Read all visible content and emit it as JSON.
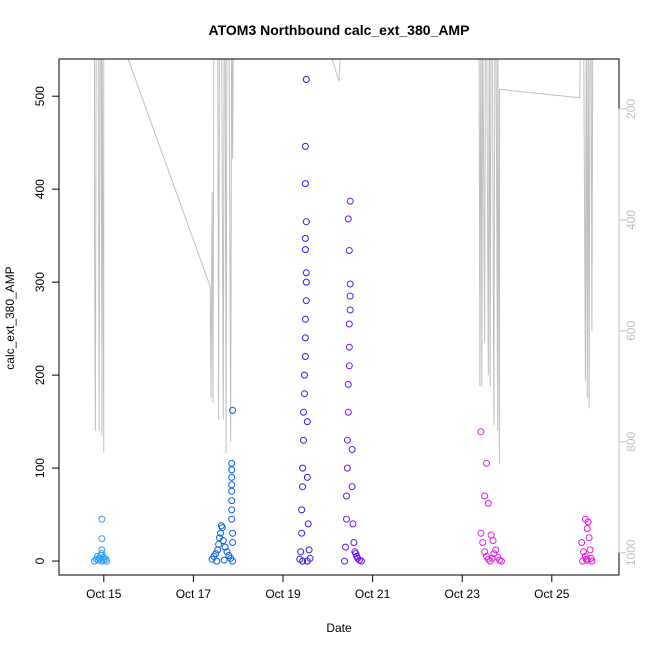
{
  "chart_data": {
    "type": "scatter",
    "title": "ATOM3 Northbound calc_ext_380_AMP",
    "xlabel": "Date",
    "ylabel": "calc_ext_380_AMP",
    "xlim": [
      "2016-10-14T00:00",
      "2016-10-26T12:00"
    ],
    "ylim": [
      -15,
      540
    ],
    "x_ticks": [
      {
        "date": "2016-10-15",
        "label": "Oct 15"
      },
      {
        "date": "2016-10-17",
        "label": "Oct 17"
      },
      {
        "date": "2016-10-19",
        "label": "Oct 19"
      },
      {
        "date": "2016-10-21",
        "label": "Oct 21"
      },
      {
        "date": "2016-10-23",
        "label": "Oct 23"
      },
      {
        "date": "2016-10-25",
        "label": "Oct 25"
      }
    ],
    "y_ticks": [
      0,
      100,
      200,
      300,
      400,
      500
    ],
    "right_axis": {
      "reversed": true,
      "range": [
        110,
        1040
      ],
      "ticks": [
        200,
        400,
        600,
        800,
        1000
      ],
      "color": "#bfbfbf"
    },
    "grid": false,
    "legend": "none",
    "series": [
      {
        "color": "#2a9df4",
        "points": [
          [
            "2016-10-14T19:00",
            0
          ],
          [
            "2016-10-14T20:00",
            2
          ],
          [
            "2016-10-14T21:00",
            1
          ],
          [
            "2016-10-14T22:00",
            3
          ],
          [
            "2016-10-14T23:00",
            0
          ],
          [
            "2016-10-15T00:00",
            4
          ],
          [
            "2016-10-14T20:30",
            5
          ],
          [
            "2016-10-14T22:30",
            6
          ],
          [
            "2016-10-14T23:00",
            8
          ],
          [
            "2016-10-14T23:00",
            12
          ],
          [
            "2016-10-14T23:00",
            24
          ],
          [
            "2016-10-14T23:00",
            45
          ],
          [
            "2016-10-14T21:30",
            3
          ],
          [
            "2016-10-15T00:00",
            1
          ],
          [
            "2016-10-15T01:00",
            2
          ],
          [
            "2016-10-15T01:30",
            0
          ]
        ]
      },
      {
        "color": "#0a5fe0",
        "points": [
          [
            "2016-10-17T10:00",
            2
          ],
          [
            "2016-10-17T11:00",
            5
          ],
          [
            "2016-10-17T12:00",
            8
          ],
          [
            "2016-10-17T13:00",
            12
          ],
          [
            "2016-10-17T13:30",
            18
          ],
          [
            "2016-10-17T14:00",
            25
          ],
          [
            "2016-10-17T14:30",
            30
          ],
          [
            "2016-10-17T15:00",
            38
          ],
          [
            "2016-10-17T15:30",
            36
          ],
          [
            "2016-10-17T16:00",
            22
          ],
          [
            "2016-10-17T17:00",
            15
          ],
          [
            "2016-10-17T18:00",
            10
          ],
          [
            "2016-10-17T19:00",
            6
          ],
          [
            "2016-10-17T20:00",
            3
          ],
          [
            "2016-10-17T20:30",
            45
          ],
          [
            "2016-10-17T20:30",
            55
          ],
          [
            "2016-10-17T20:30",
            65
          ],
          [
            "2016-10-17T20:30",
            75
          ],
          [
            "2016-10-17T20:30",
            82
          ],
          [
            "2016-10-17T20:30",
            90
          ],
          [
            "2016-10-17T20:30",
            98
          ],
          [
            "2016-10-17T20:30",
            105
          ],
          [
            "2016-10-17T21:00",
            20
          ],
          [
            "2016-10-17T21:00",
            30
          ],
          [
            "2016-10-17T21:00",
            162
          ],
          [
            "2016-10-17T21:00",
            0
          ],
          [
            "2016-10-17T12:30",
            0
          ],
          [
            "2016-10-17T16:30",
            1
          ]
        ]
      },
      {
        "color": "#2d1ee8",
        "points": [
          [
            "2016-10-19T09:00",
            2
          ],
          [
            "2016-10-19T09:30",
            10
          ],
          [
            "2016-10-19T10:00",
            30
          ],
          [
            "2016-10-19T10:00",
            55
          ],
          [
            "2016-10-19T10:30",
            80
          ],
          [
            "2016-10-19T10:30",
            100
          ],
          [
            "2016-10-19T11:00",
            130
          ],
          [
            "2016-10-19T11:00",
            160
          ],
          [
            "2016-10-19T11:30",
            180
          ],
          [
            "2016-10-19T11:30",
            200
          ],
          [
            "2016-10-19T12:00",
            220
          ],
          [
            "2016-10-19T12:00",
            240
          ],
          [
            "2016-10-19T12:00",
            260
          ],
          [
            "2016-10-19T12:30",
            280
          ],
          [
            "2016-10-19T12:30",
            300
          ],
          [
            "2016-10-19T12:30",
            310
          ],
          [
            "2016-10-19T12:00",
            335
          ],
          [
            "2016-10-19T12:00",
            347
          ],
          [
            "2016-10-19T12:30",
            365
          ],
          [
            "2016-10-19T12:00",
            406
          ],
          [
            "2016-10-19T12:00",
            446
          ],
          [
            "2016-10-19T12:30",
            518
          ],
          [
            "2016-10-19T13:00",
            150
          ],
          [
            "2016-10-19T13:00",
            90
          ],
          [
            "2016-10-19T13:30",
            40
          ],
          [
            "2016-10-19T14:00",
            12
          ],
          [
            "2016-10-19T14:30",
            3
          ],
          [
            "2016-10-19T10:30",
            0
          ],
          [
            "2016-10-19T13:00",
            0
          ]
        ]
      },
      {
        "color": "#6a14ee",
        "points": [
          [
            "2016-10-20T09:00",
            0
          ],
          [
            "2016-10-20T09:30",
            15
          ],
          [
            "2016-10-20T10:00",
            45
          ],
          [
            "2016-10-20T10:00",
            70
          ],
          [
            "2016-10-20T10:30",
            100
          ],
          [
            "2016-10-20T10:30",
            130
          ],
          [
            "2016-10-20T11:00",
            160
          ],
          [
            "2016-10-20T11:00",
            190
          ],
          [
            "2016-10-20T11:30",
            210
          ],
          [
            "2016-10-20T11:30",
            230
          ],
          [
            "2016-10-20T11:30",
            255
          ],
          [
            "2016-10-20T12:00",
            270
          ],
          [
            "2016-10-20T12:00",
            285
          ],
          [
            "2016-10-20T12:00",
            298
          ],
          [
            "2016-10-20T11:30",
            334
          ],
          [
            "2016-10-20T11:00",
            368
          ],
          [
            "2016-10-20T12:00",
            387
          ],
          [
            "2016-10-20T13:00",
            120
          ],
          [
            "2016-10-20T13:00",
            80
          ],
          [
            "2016-10-20T13:30",
            40
          ],
          [
            "2016-10-20T14:00",
            20
          ],
          [
            "2016-10-20T15:00",
            8
          ],
          [
            "2016-10-20T16:00",
            3
          ],
          [
            "2016-10-20T17:00",
            1
          ],
          [
            "2016-10-20T18:00",
            0
          ],
          [
            "2016-10-20T14:30",
            10
          ],
          [
            "2016-10-20T15:30",
            5
          ]
        ]
      },
      {
        "color": "#e21ee0",
        "points": [
          [
            "2016-10-23T10:00",
            139
          ],
          [
            "2016-10-23T13:00",
            105
          ],
          [
            "2016-10-23T12:00",
            70
          ],
          [
            "2016-10-23T14:00",
            62
          ],
          [
            "2016-10-23T10:00",
            30
          ],
          [
            "2016-10-23T11:00",
            20
          ],
          [
            "2016-10-23T12:00",
            10
          ],
          [
            "2016-10-23T13:00",
            5
          ],
          [
            "2016-10-23T14:00",
            2
          ],
          [
            "2016-10-23T15:00",
            0
          ],
          [
            "2016-10-23T16:00",
            3
          ],
          [
            "2016-10-23T17:00",
            8
          ],
          [
            "2016-10-23T18:00",
            12
          ],
          [
            "2016-10-23T19:00",
            4
          ],
          [
            "2016-10-23T20:00",
            1
          ],
          [
            "2016-10-23T21:00",
            0
          ],
          [
            "2016-10-23T15:30",
            28
          ],
          [
            "2016-10-23T16:30",
            22
          ]
        ]
      },
      {
        "color": "#ee10e0",
        "points": [
          [
            "2016-10-25T16:00",
            20
          ],
          [
            "2016-10-25T17:00",
            10
          ],
          [
            "2016-10-25T18:00",
            5
          ],
          [
            "2016-10-25T18:00",
            45
          ],
          [
            "2016-10-25T19:00",
            35
          ],
          [
            "2016-10-25T19:30",
            42
          ],
          [
            "2016-10-25T20:00",
            25
          ],
          [
            "2016-10-25T20:30",
            12
          ],
          [
            "2016-10-25T21:00",
            3
          ],
          [
            "2016-10-25T16:30",
            0
          ],
          [
            "2016-10-25T21:30",
            0
          ],
          [
            "2016-10-25T18:30",
            2
          ],
          [
            "2016-10-25T19:00",
            1
          ]
        ]
      }
    ],
    "overlay_line": {
      "color": "#bfbfbf",
      "axis": "right",
      "points": [
        [
          "2016-10-14T19:00",
          0
        ],
        [
          "2016-10-14T19:00",
          430
        ],
        [
          "2016-10-14T19:30",
          780
        ],
        [
          "2016-10-14T20:00",
          0
        ],
        [
          "2016-10-14T21:00",
          0
        ],
        [
          "2016-10-14T21:30",
          780
        ],
        [
          "2016-10-14T22:00",
          0
        ],
        [
          "2016-10-14T22:30",
          0
        ],
        [
          "2016-10-14T23:00",
          790
        ],
        [
          "2016-10-14T23:00",
          0
        ],
        [
          "2016-10-15T00:00",
          820
        ],
        [
          "2016-10-15T00:00",
          0
        ],
        [
          "2016-10-15T01:00",
          0
        ],
        [
          "2016-10-15T12:00",
          100
        ],
        [
          "2016-10-17T09:00",
          520
        ],
        [
          "2016-10-17T09:30",
          720
        ],
        [
          "2016-10-17T10:00",
          350
        ],
        [
          "2016-10-17T10:30",
          730
        ],
        [
          "2016-10-17T11:00",
          0
        ],
        [
          "2016-10-17T12:00",
          0
        ],
        [
          "2016-10-17T13:00",
          0
        ],
        [
          "2016-10-17T13:30",
          760
        ],
        [
          "2016-10-17T14:00",
          0
        ],
        [
          "2016-10-17T15:00",
          0
        ],
        [
          "2016-10-17T16:00",
          760
        ],
        [
          "2016-10-17T16:30",
          0
        ],
        [
          "2016-10-17T17:00",
          0
        ],
        [
          "2016-10-17T17:30",
          820
        ],
        [
          "2016-10-17T18:00",
          0
        ],
        [
          "2016-10-17T19:00",
          0
        ],
        [
          "2016-10-17T20:00",
          800
        ],
        [
          "2016-10-17T20:30",
          0
        ],
        [
          "2016-10-17T21:00",
          290
        ],
        [
          "2016-10-17T21:30",
          0
        ],
        [
          "2016-10-19T06:00",
          110
        ],
        [
          "2016-10-19T09:00",
          0
        ],
        [
          "2016-10-19T09:30",
          0
        ],
        [
          "2016-10-19T10:00",
          0
        ],
        [
          "2016-10-19T11:00",
          0
        ],
        [
          "2016-10-19T12:00",
          0
        ],
        [
          "2016-10-19T13:00",
          0
        ],
        [
          "2016-10-19T14:00",
          0
        ],
        [
          "2016-10-19T15:00",
          0
        ],
        [
          "2016-10-19T16:00",
          0
        ],
        [
          "2016-10-20T06:00",
          150
        ],
        [
          "2016-10-20T08:00",
          0
        ],
        [
          "2016-10-20T09:00",
          0
        ],
        [
          "2016-10-20T10:00",
          0
        ],
        [
          "2016-10-20T11:00",
          0
        ],
        [
          "2016-10-20T12:00",
          0
        ],
        [
          "2016-10-20T13:00",
          0
        ],
        [
          "2016-10-20T14:00",
          0
        ],
        [
          "2016-10-20T15:00",
          0
        ],
        [
          "2016-10-20T16:00",
          0
        ],
        [
          "2016-10-20T17:00",
          0
        ],
        [
          "2016-10-20T18:00",
          0
        ],
        [
          "2016-10-23T09:00",
          0
        ],
        [
          "2016-10-23T09:30",
          700
        ],
        [
          "2016-10-23T10:00",
          0
        ],
        [
          "2016-10-23T10:30",
          700
        ],
        [
          "2016-10-23T11:00",
          0
        ],
        [
          "2016-10-23T12:00",
          620
        ],
        [
          "2016-10-23T12:30",
          0
        ],
        [
          "2016-10-23T13:00",
          0
        ],
        [
          "2016-10-23T14:00",
          680
        ],
        [
          "2016-10-23T14:30",
          0
        ],
        [
          "2016-10-23T15:00",
          700
        ],
        [
          "2016-10-23T15:30",
          0
        ],
        [
          "2016-10-23T16:00",
          0
        ],
        [
          "2016-10-23T17:00",
          770
        ],
        [
          "2016-10-23T17:30",
          0
        ],
        [
          "2016-10-23T18:00",
          0
        ],
        [
          "2016-10-23T19:00",
          780
        ],
        [
          "2016-10-23T19:00",
          0
        ],
        [
          "2016-10-23T20:00",
          840
        ],
        [
          "2016-10-23T20:00",
          165
        ],
        [
          "2016-10-23T21:00",
          165
        ],
        [
          "2016-10-25T15:00",
          180
        ],
        [
          "2016-10-25T15:30",
          0
        ],
        [
          "2016-10-25T16:00",
          0
        ],
        [
          "2016-10-25T17:00",
          0
        ],
        [
          "2016-10-25T18:00",
          690
        ],
        [
          "2016-10-25T18:30",
          0
        ],
        [
          "2016-10-25T19:00",
          720
        ],
        [
          "2016-10-25T19:30",
          0
        ],
        [
          "2016-10-25T20:00",
          740
        ],
        [
          "2016-10-25T20:30",
          0
        ],
        [
          "2016-10-25T21:00",
          0
        ],
        [
          "2016-10-25T21:30",
          600
        ],
        [
          "2016-10-25T22:00",
          0
        ]
      ]
    }
  }
}
